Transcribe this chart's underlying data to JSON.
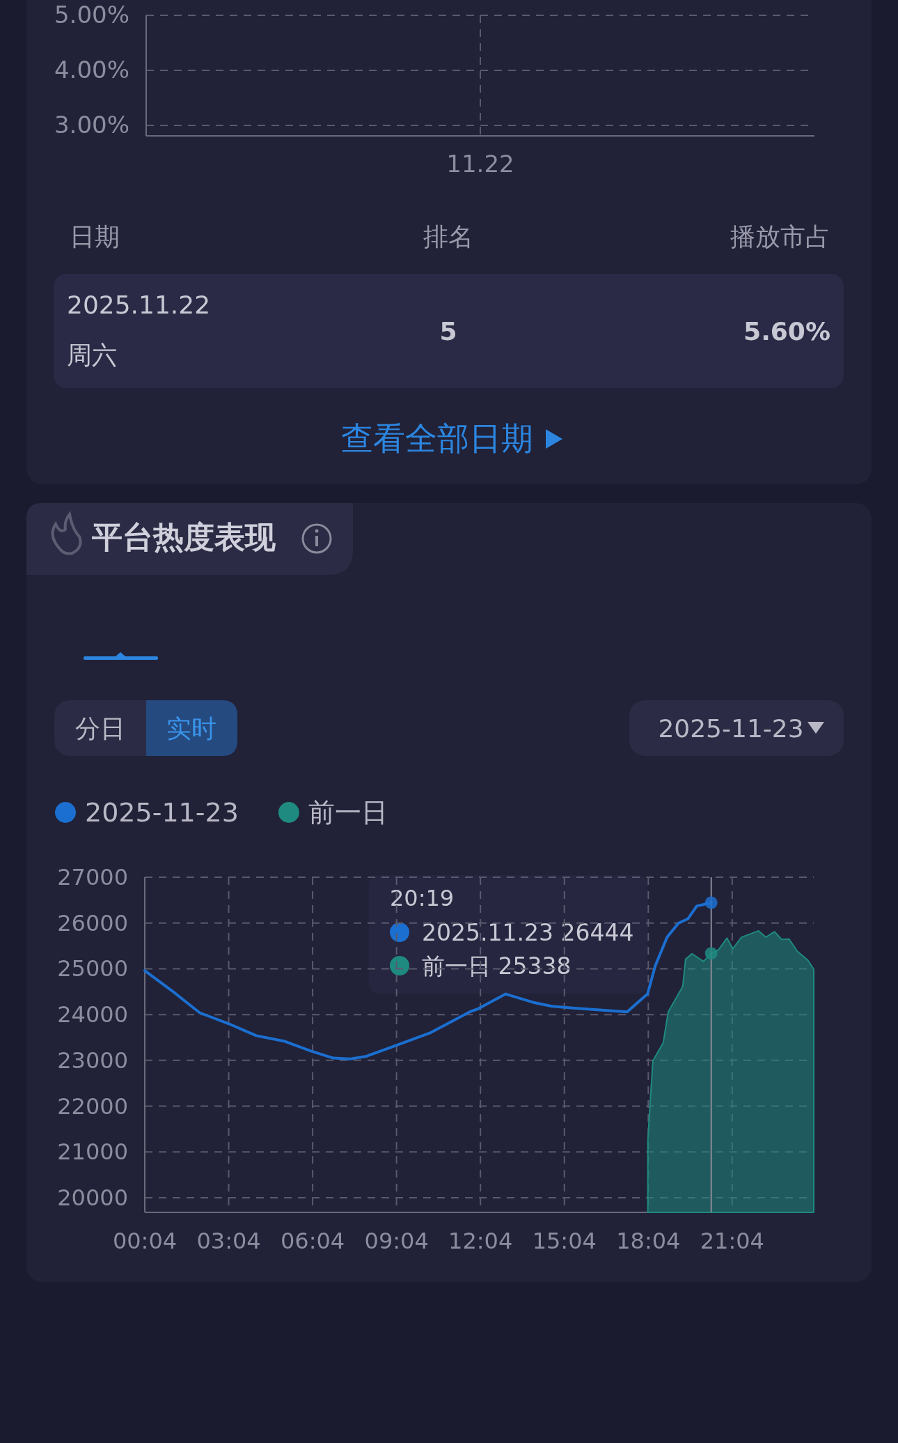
{
  "chart_data": [
    {
      "type": "line",
      "categories": [
        "11.22"
      ],
      "values": [
        null
      ],
      "ylim": [
        2.81,
        5
      ],
      "yticks": [
        {
          "value": 3,
          "label": "3.00%"
        },
        {
          "value": 4,
          "label": "4.00%"
        },
        {
          "value": 5,
          "label": "5.00%"
        }
      ],
      "grid": true,
      "annotations": [
        "日期",
        "排名",
        "播放市占",
        "2025.11.22",
        "周六",
        "5",
        "5.60%",
        "查看全部日期"
      ]
    },
    {
      "type": "line",
      "title": "平台热度表现",
      "series": [
        {
          "name": "2025-11-23",
          "color": "#1b6fd0",
          "x": [
            0.067,
            1.1,
            2.03,
            3.07,
            4.05,
            5.04,
            6.02,
            6.81,
            7.4,
            7.99,
            9.02,
            10.3,
            11.72,
            11.96,
            12.97,
            13.99,
            14.63,
            15.46,
            17.31,
            18.04,
            18.32,
            18.74,
            19.15,
            19.48,
            19.8,
            20.317
          ],
          "values": [
            24960,
            24490,
            24040,
            23800,
            23540,
            23420,
            23200,
            23050,
            23030,
            23090,
            23320,
            23610,
            24070,
            24120,
            24450,
            24260,
            24180,
            24140,
            24060,
            24450,
            25070,
            25690,
            26000,
            26090,
            26370,
            26444
          ]
        },
        {
          "name": "前一日",
          "type": "area",
          "color": "#1f8a80",
          "x": [
            18.05,
            18.23,
            18.6,
            18.78,
            18.94,
            19.3,
            19.4,
            19.63,
            20.04,
            20.317,
            20.57,
            20.88,
            21.09,
            21.4,
            22.01,
            22.27,
            22.58,
            22.84,
            23.1,
            23.4,
            23.77,
            23.983
          ],
          "values": [
            21240,
            22990,
            23380,
            24060,
            24230,
            24620,
            25210,
            25330,
            25160,
            25338,
            25410,
            25670,
            25440,
            25690,
            25830,
            25690,
            25810,
            25640,
            25650,
            25380,
            25190,
            24990
          ]
        }
      ],
      "xlim": [
        0.067,
        23.983
      ],
      "xticks": [
        {
          "value": 0.067,
          "label": "00:04"
        },
        {
          "value": 3.067,
          "label": "03:04"
        },
        {
          "value": 6.067,
          "label": "06:04"
        },
        {
          "value": 9.067,
          "label": "09:04"
        },
        {
          "value": 12.067,
          "label": "12:04"
        },
        {
          "value": 15.067,
          "label": "15:04"
        },
        {
          "value": 18.067,
          "label": "18:04"
        },
        {
          "value": 21.067,
          "label": "21:04"
        }
      ],
      "ylim": [
        19680,
        27000
      ],
      "yticks": [
        20000,
        21000,
        22000,
        23000,
        24000,
        25000,
        26000,
        27000
      ],
      "grid": true,
      "legend": "top left",
      "ref_lines": [
        {
          "axis": "x",
          "value": 20.317,
          "color": "#8a8a9a"
        }
      ],
      "annotations": [
        "20:19",
        "2025.11.23 26444",
        "前一日 25338",
        "分日",
        "实时",
        "2025-11-23"
      ]
    }
  ]
}
